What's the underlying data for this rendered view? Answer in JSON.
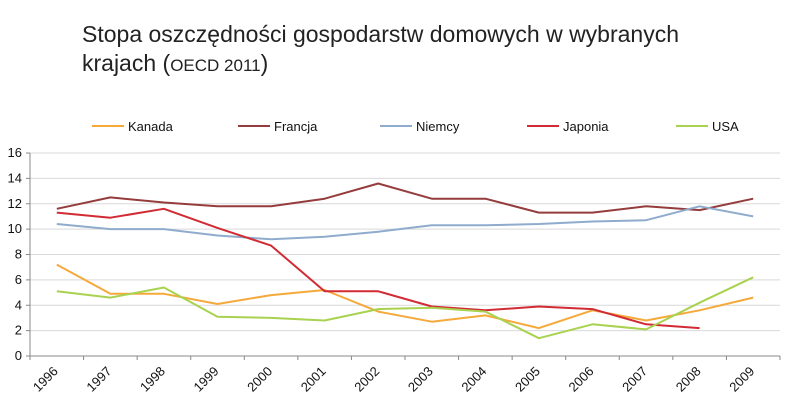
{
  "title": {
    "line1": "Stopa oszczędności gospodarstw domowych w wybranych",
    "line2_main": "krajach (",
    "line2_small": "OECD 2011",
    "line2_end": ")"
  },
  "chart_data": {
    "type": "line",
    "title": "Stopa oszczędności gospodarstw domowych w wybranych krajach (OECD 2011)",
    "x": [
      "1996",
      "1997",
      "1998",
      "1999",
      "2000",
      "2001",
      "2002",
      "2003",
      "2004",
      "2005",
      "2006",
      "2007",
      "2008",
      "2009"
    ],
    "ylim": [
      0,
      16
    ],
    "yticks": [
      0,
      2,
      4,
      6,
      8,
      10,
      12,
      14,
      16
    ],
    "grid": true,
    "legend_position": "top",
    "series": [
      {
        "name": "Kanada",
        "color": "#f5a93a",
        "values": [
          7.2,
          4.9,
          4.9,
          4.1,
          4.8,
          5.2,
          3.5,
          2.7,
          3.2,
          2.2,
          3.6,
          2.8,
          3.6,
          4.6
        ]
      },
      {
        "name": "Francja",
        "color": "#953c3c",
        "values": [
          11.6,
          12.5,
          12.1,
          11.8,
          11.8,
          12.4,
          13.6,
          12.4,
          12.4,
          11.3,
          11.3,
          11.8,
          11.5,
          12.4
        ]
      },
      {
        "name": "Niemcy",
        "color": "#8fabcd",
        "values": [
          10.4,
          10.0,
          10.0,
          9.5,
          9.2,
          9.4,
          9.8,
          10.3,
          10.3,
          10.4,
          10.6,
          10.7,
          11.8,
          11.0
        ]
      },
      {
        "name": "Japonia",
        "color": "#d12b34",
        "values": [
          11.3,
          10.9,
          11.6,
          10.1,
          8.7,
          5.1,
          5.1,
          3.9,
          3.6,
          3.9,
          3.7,
          2.5,
          2.2,
          null
        ]
      },
      {
        "name": "USA",
        "color": "#a8d24f",
        "values": [
          5.1,
          4.6,
          5.4,
          3.1,
          3.0,
          2.8,
          3.7,
          3.8,
          3.5,
          1.4,
          2.5,
          2.1,
          4.2,
          6.2
        ]
      }
    ]
  }
}
